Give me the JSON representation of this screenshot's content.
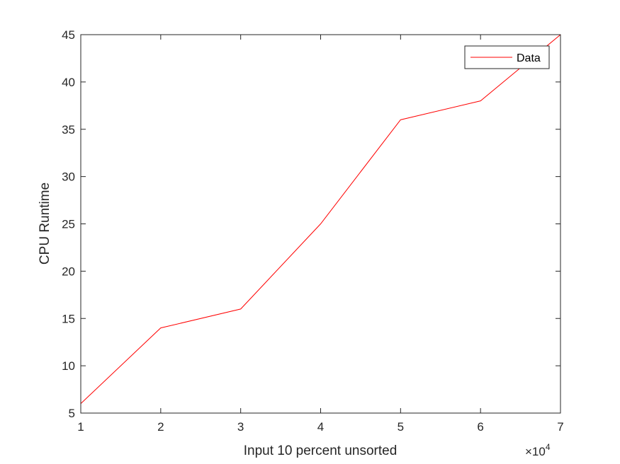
{
  "chart_data": {
    "type": "line",
    "x": [
      10000,
      20000,
      30000,
      40000,
      50000,
      60000,
      70000
    ],
    "series": [
      {
        "name": "Data",
        "values": [
          6,
          14,
          16,
          25,
          36,
          38,
          45
        ],
        "color": "#ff0000"
      }
    ],
    "xlabel": "Input 10 percent unsorted",
    "ylabel": "CPU Runtime",
    "xlim": [
      10000,
      70000
    ],
    "ylim": [
      5,
      45
    ],
    "x_ticks": [
      1,
      2,
      3,
      4,
      5,
      6,
      7
    ],
    "x_tick_labels": [
      "1",
      "2",
      "3",
      "4",
      "5",
      "6",
      "7"
    ],
    "y_ticks": [
      5,
      10,
      15,
      20,
      25,
      30,
      35,
      40,
      45
    ],
    "y_tick_labels": [
      "5",
      "10",
      "15",
      "20",
      "25",
      "30",
      "35",
      "40",
      "45"
    ],
    "x_exponent": {
      "prefix": "×10",
      "power": "4"
    },
    "grid": false,
    "legend": {
      "entries": [
        "Data"
      ],
      "position": "top-right"
    },
    "axis_color": "#262626"
  }
}
